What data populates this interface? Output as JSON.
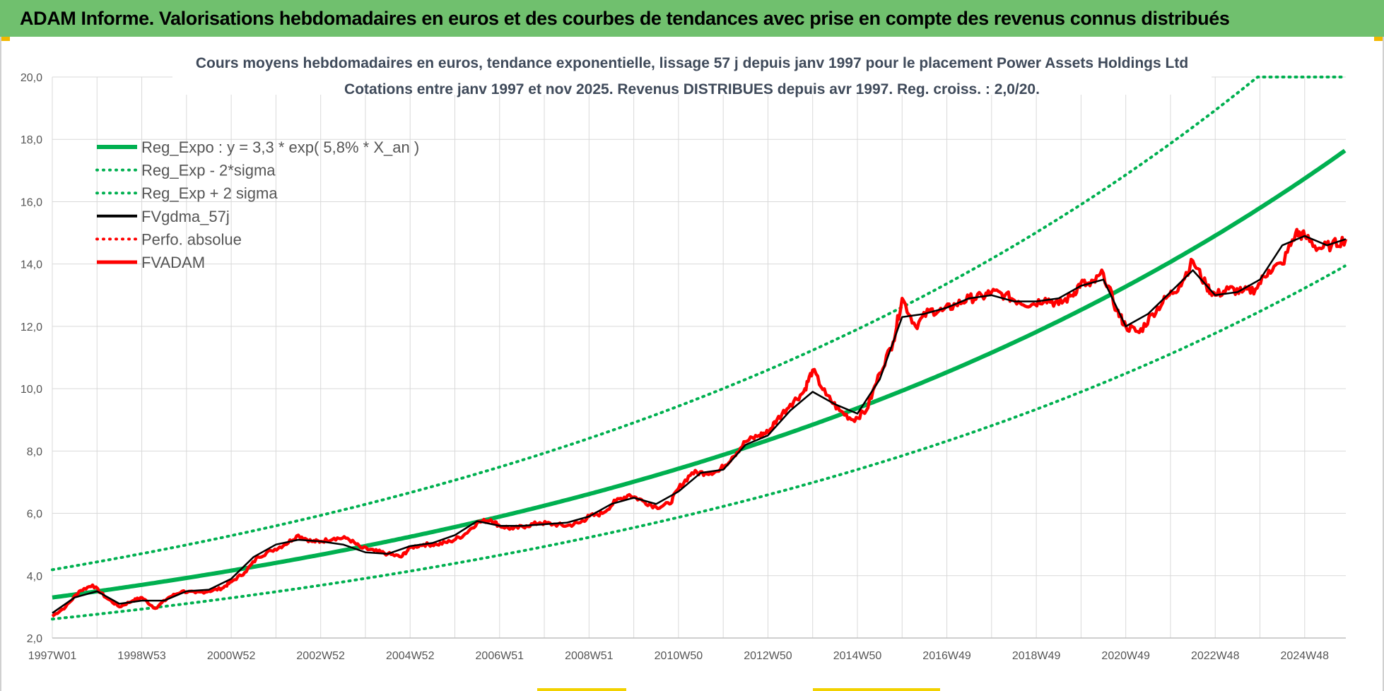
{
  "banner": {
    "title": "ADAM Informe. Valorisations hebdomadaires en euros et des courbes de tendances avec prise en compte des revenus connus distribués"
  },
  "colors": {
    "banner_bg": "#70c06e",
    "trend": "#00b050",
    "fv_line": "#000000",
    "adam_line": "#ff0000",
    "grid": "#d9d9d9"
  },
  "chart_data": {
    "type": "line",
    "title_lines": [
      "Cours moyens hebdomadaires en euros, tendance exponentielle, lissage 57 j depuis janv 1997  pour le placement Power Assets Holdings Ltd",
      "Cotations entre janv 1997 et nov 2025. Revenus DISTRIBUES depuis avr 1997. Reg. croiss. : 2,0/20."
    ],
    "x_start_year": 1997.0,
    "x_end_year": 2025.92,
    "ylim": [
      2,
      20
    ],
    "y_ticks": [
      "2,0",
      "4,0",
      "6,0",
      "8,0",
      "10,0",
      "12,0",
      "14,0",
      "16,0",
      "18,0",
      "20,0"
    ],
    "x_ticks": [
      {
        "label": "1997W01",
        "year": 1997.0
      },
      {
        "label": "1998W53",
        "year": 1999.0
      },
      {
        "label": "2000W52",
        "year": 2001.0
      },
      {
        "label": "2002W52",
        "year": 2003.0
      },
      {
        "label": "2004W52",
        "year": 2005.0
      },
      {
        "label": "2006W51",
        "year": 2007.0
      },
      {
        "label": "2008W51",
        "year": 2009.0
      },
      {
        "label": "2010W50",
        "year": 2011.0
      },
      {
        "label": "2012W50",
        "year": 2013.0
      },
      {
        "label": "2014W50",
        "year": 2015.0
      },
      {
        "label": "2016W49",
        "year": 2017.0
      },
      {
        "label": "2018W49",
        "year": 2019.0
      },
      {
        "label": "2020W49",
        "year": 2021.0
      },
      {
        "label": "2022W48",
        "year": 2023.0
      },
      {
        "label": "2024W48",
        "year": 2025.0
      }
    ],
    "legend": [
      {
        "label": "Reg_Expo : y = 3,3 * exp( 5,8% *  X_an )",
        "color": "#00b050",
        "style": "solid",
        "width": 6
      },
      {
        "label": "Reg_Exp - 2*sigma",
        "color": "#00b050",
        "style": "dotted",
        "width": 4
      },
      {
        "label": "Reg_Exp + 2 sigma",
        "color": "#00b050",
        "style": "dotted",
        "width": 4
      },
      {
        "label": "FVgdma_57j",
        "color": "#000000",
        "style": "solid",
        "width": 4
      },
      {
        "label": "Perfo. absolue",
        "color": "#ff0000",
        "style": "dotted",
        "width": 4
      },
      {
        "label": "FVADAM",
        "color": "#ff0000",
        "style": "solid",
        "width": 5
      }
    ],
    "trend": {
      "a": 3.3,
      "rate": 0.058,
      "lower_factor": 0.79,
      "upper_factor": 1.27
    },
    "series": [
      {
        "name": "FVADAM",
        "x": [
          1997.0,
          1997.3,
          1997.6,
          1997.9,
          1998.2,
          1998.5,
          1998.8,
          1999.0,
          1999.3,
          1999.6,
          1999.9,
          2000.2,
          2000.5,
          2000.8,
          2001.0,
          2001.3,
          2001.6,
          2001.9,
          2002.2,
          2002.5,
          2002.8,
          2003.0,
          2003.3,
          2003.6,
          2003.9,
          2004.2,
          2004.5,
          2004.8,
          2005.0,
          2005.3,
          2005.6,
          2005.9,
          2006.2,
          2006.5,
          2006.8,
          2007.0,
          2007.3,
          2007.6,
          2007.9,
          2008.2,
          2008.5,
          2008.8,
          2009.0,
          2009.3,
          2009.6,
          2009.9,
          2010.2,
          2010.5,
          2010.8,
          2011.0,
          2011.3,
          2011.6,
          2011.9,
          2012.2,
          2012.5,
          2012.8,
          2013.0,
          2013.2,
          2013.5,
          2013.8,
          2014.0,
          2014.3,
          2014.6,
          2014.9,
          2015.2,
          2015.5,
          2015.8,
          2016.0,
          2016.3,
          2016.6,
          2016.9,
          2017.2,
          2017.5,
          2017.8,
          2018.0,
          2018.3,
          2018.6,
          2018.9,
          2019.2,
          2019.5,
          2019.8,
          2020.0,
          2020.2,
          2020.5,
          2020.8,
          2021.0,
          2021.3,
          2021.6,
          2021.9,
          2022.2,
          2022.5,
          2022.8,
          2023.0,
          2023.3,
          2023.6,
          2023.9,
          2024.2,
          2024.5,
          2024.8,
          2025.0,
          2025.3,
          2025.6,
          2025.92
        ],
        "y": [
          2.7,
          3.0,
          3.5,
          3.7,
          3.3,
          3.0,
          3.2,
          3.3,
          2.95,
          3.3,
          3.5,
          3.45,
          3.5,
          3.6,
          3.8,
          4.1,
          4.6,
          4.8,
          5.0,
          5.3,
          5.1,
          5.1,
          5.2,
          5.2,
          4.9,
          4.8,
          4.7,
          4.6,
          4.9,
          5.0,
          5.0,
          5.1,
          5.3,
          5.7,
          5.8,
          5.6,
          5.5,
          5.6,
          5.7,
          5.65,
          5.6,
          5.7,
          5.9,
          6.0,
          6.4,
          6.6,
          6.4,
          6.2,
          6.3,
          6.8,
          7.3,
          7.3,
          7.35,
          7.8,
          8.3,
          8.5,
          8.6,
          9.0,
          9.5,
          9.9,
          10.6,
          9.8,
          9.3,
          9.0,
          9.3,
          10.5,
          11.5,
          12.9,
          12.0,
          12.5,
          12.5,
          12.7,
          12.9,
          12.95,
          13.1,
          13.0,
          12.8,
          12.7,
          12.9,
          12.7,
          13.0,
          13.4,
          13.3,
          13.7,
          12.5,
          12.0,
          11.8,
          12.4,
          12.9,
          13.3,
          14.1,
          13.3,
          13.0,
          13.2,
          13.1,
          13.2,
          13.8,
          14.0,
          15.0,
          14.9,
          14.5,
          14.6,
          14.8
        ]
      },
      {
        "name": "FVgdma_57j",
        "x": [
          1997.0,
          1997.5,
          1998.0,
          1998.5,
          1999.0,
          1999.5,
          2000.0,
          2000.5,
          2001.0,
          2001.5,
          2002.0,
          2002.5,
          2003.0,
          2003.5,
          2004.0,
          2004.5,
          2005.0,
          2005.5,
          2006.0,
          2006.5,
          2007.0,
          2007.5,
          2008.0,
          2008.5,
          2009.0,
          2009.5,
          2010.0,
          2010.5,
          2011.0,
          2011.5,
          2012.0,
          2012.5,
          2013.0,
          2013.5,
          2014.0,
          2014.5,
          2015.0,
          2015.5,
          2016.0,
          2016.5,
          2017.0,
          2017.5,
          2018.0,
          2018.5,
          2019.0,
          2019.5,
          2020.0,
          2020.5,
          2021.0,
          2021.5,
          2022.0,
          2022.5,
          2023.0,
          2023.5,
          2024.0,
          2024.5,
          2025.0,
          2025.5,
          2025.92
        ],
        "y": [
          2.8,
          3.3,
          3.5,
          3.1,
          3.2,
          3.2,
          3.5,
          3.55,
          3.9,
          4.6,
          5.0,
          5.15,
          5.1,
          5.0,
          4.75,
          4.7,
          4.95,
          5.05,
          5.3,
          5.75,
          5.6,
          5.6,
          5.65,
          5.7,
          5.9,
          6.3,
          6.5,
          6.3,
          6.7,
          7.3,
          7.4,
          8.2,
          8.5,
          9.3,
          9.9,
          9.5,
          9.2,
          10.3,
          12.3,
          12.4,
          12.6,
          12.9,
          13.0,
          12.8,
          12.8,
          12.9,
          13.3,
          13.5,
          12.0,
          12.4,
          13.1,
          13.8,
          13.0,
          13.1,
          13.5,
          14.6,
          14.9,
          14.6,
          14.8
        ]
      }
    ]
  }
}
